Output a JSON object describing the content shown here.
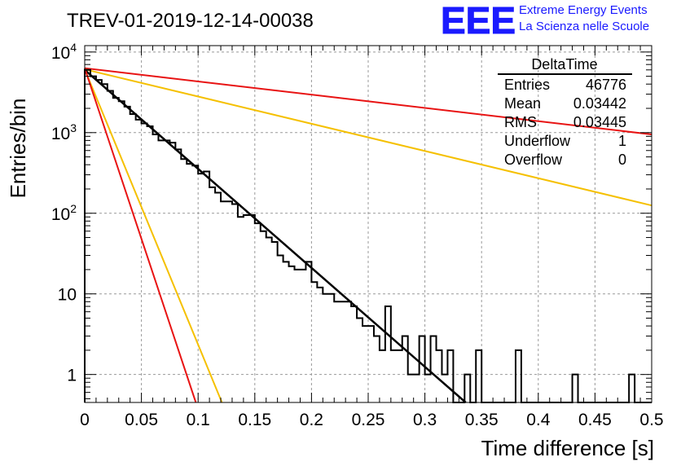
{
  "header": {
    "title": "TREV-01-2019-12-14-00038",
    "logo_text": "EEE",
    "logo_line1": "Extreme Energy Events",
    "logo_line2": "La Scienza nelle Scuole",
    "logo_color": "#1a1aff"
  },
  "stats_box": {
    "title": "DeltaTime",
    "rows": [
      {
        "label": "Entries",
        "value": "46776"
      },
      {
        "label": "Mean",
        "value": "0.03442"
      },
      {
        "label": "RMS",
        "value": "0.03445"
      },
      {
        "label": "Underflow",
        "value": "1"
      },
      {
        "label": "Overflow",
        "value": "0"
      }
    ]
  },
  "chart_data": {
    "type": "bar",
    "style": "step-histogram",
    "title": "TREV-01-2019-12-14-00038",
    "xlabel": "Time difference [s]",
    "ylabel": "Entries/bin",
    "xlim": [
      0,
      0.5
    ],
    "ylim": [
      0.45,
      12000
    ],
    "yscale": "log",
    "grid": true,
    "xticks": [
      0,
      0.05,
      0.1,
      0.15,
      0.2,
      0.25,
      0.3,
      0.35,
      0.4,
      0.45,
      0.5
    ],
    "xtick_labels": [
      "0",
      "0.05",
      "0.1",
      "0.15",
      "0.2",
      "0.25",
      "0.3",
      "0.35",
      "0.4",
      "0.45",
      "0.5"
    ],
    "yticks": [
      1,
      10,
      100,
      1000,
      10000
    ],
    "ytick_labels": [
      "1",
      "10",
      "10^2",
      "10^3",
      "10^4"
    ],
    "bin_width": 0.005,
    "histogram": {
      "color": "#000000",
      "values": [
        6000,
        5000,
        4500,
        4000,
        3300,
        2700,
        2450,
        2100,
        1700,
        1450,
        1300,
        1200,
        950,
        800,
        800,
        750,
        620,
        470,
        410,
        390,
        310,
        330,
        210,
        180,
        140,
        140,
        130,
        90,
        95,
        95,
        75,
        60,
        50,
        44,
        30,
        25,
        22,
        20,
        20,
        25,
        14,
        12,
        10,
        10,
        8,
        8,
        8,
        7,
        5,
        4,
        4,
        3,
        2,
        7,
        2,
        2,
        3,
        1,
        1,
        3,
        1,
        3,
        2,
        1,
        2,
        0,
        0,
        1,
        0,
        2,
        0,
        0,
        0,
        0,
        0,
        0,
        2,
        0,
        0,
        0,
        0,
        0,
        0,
        0,
        0,
        0,
        1,
        0,
        0,
        0,
        0,
        0,
        0,
        0,
        0,
        0,
        1,
        0,
        0,
        0
      ]
    },
    "fits": [
      {
        "color": "#000000",
        "x": [
          0,
          0.336
        ],
        "y": [
          6000,
          0.45
        ]
      },
      {
        "color": "#e81313",
        "x": [
          0,
          0.5
        ],
        "y": [
          6300,
          950
        ]
      },
      {
        "color": "#f5c000",
        "x": [
          0,
          0.5
        ],
        "y": [
          6100,
          125
        ]
      },
      {
        "color": "#f5c000",
        "x": [
          0,
          0.121
        ],
        "y": [
          6100,
          0.45
        ]
      },
      {
        "color": "#e81313",
        "x": [
          0,
          0.098
        ],
        "y": [
          6300,
          0.45
        ]
      }
    ]
  }
}
